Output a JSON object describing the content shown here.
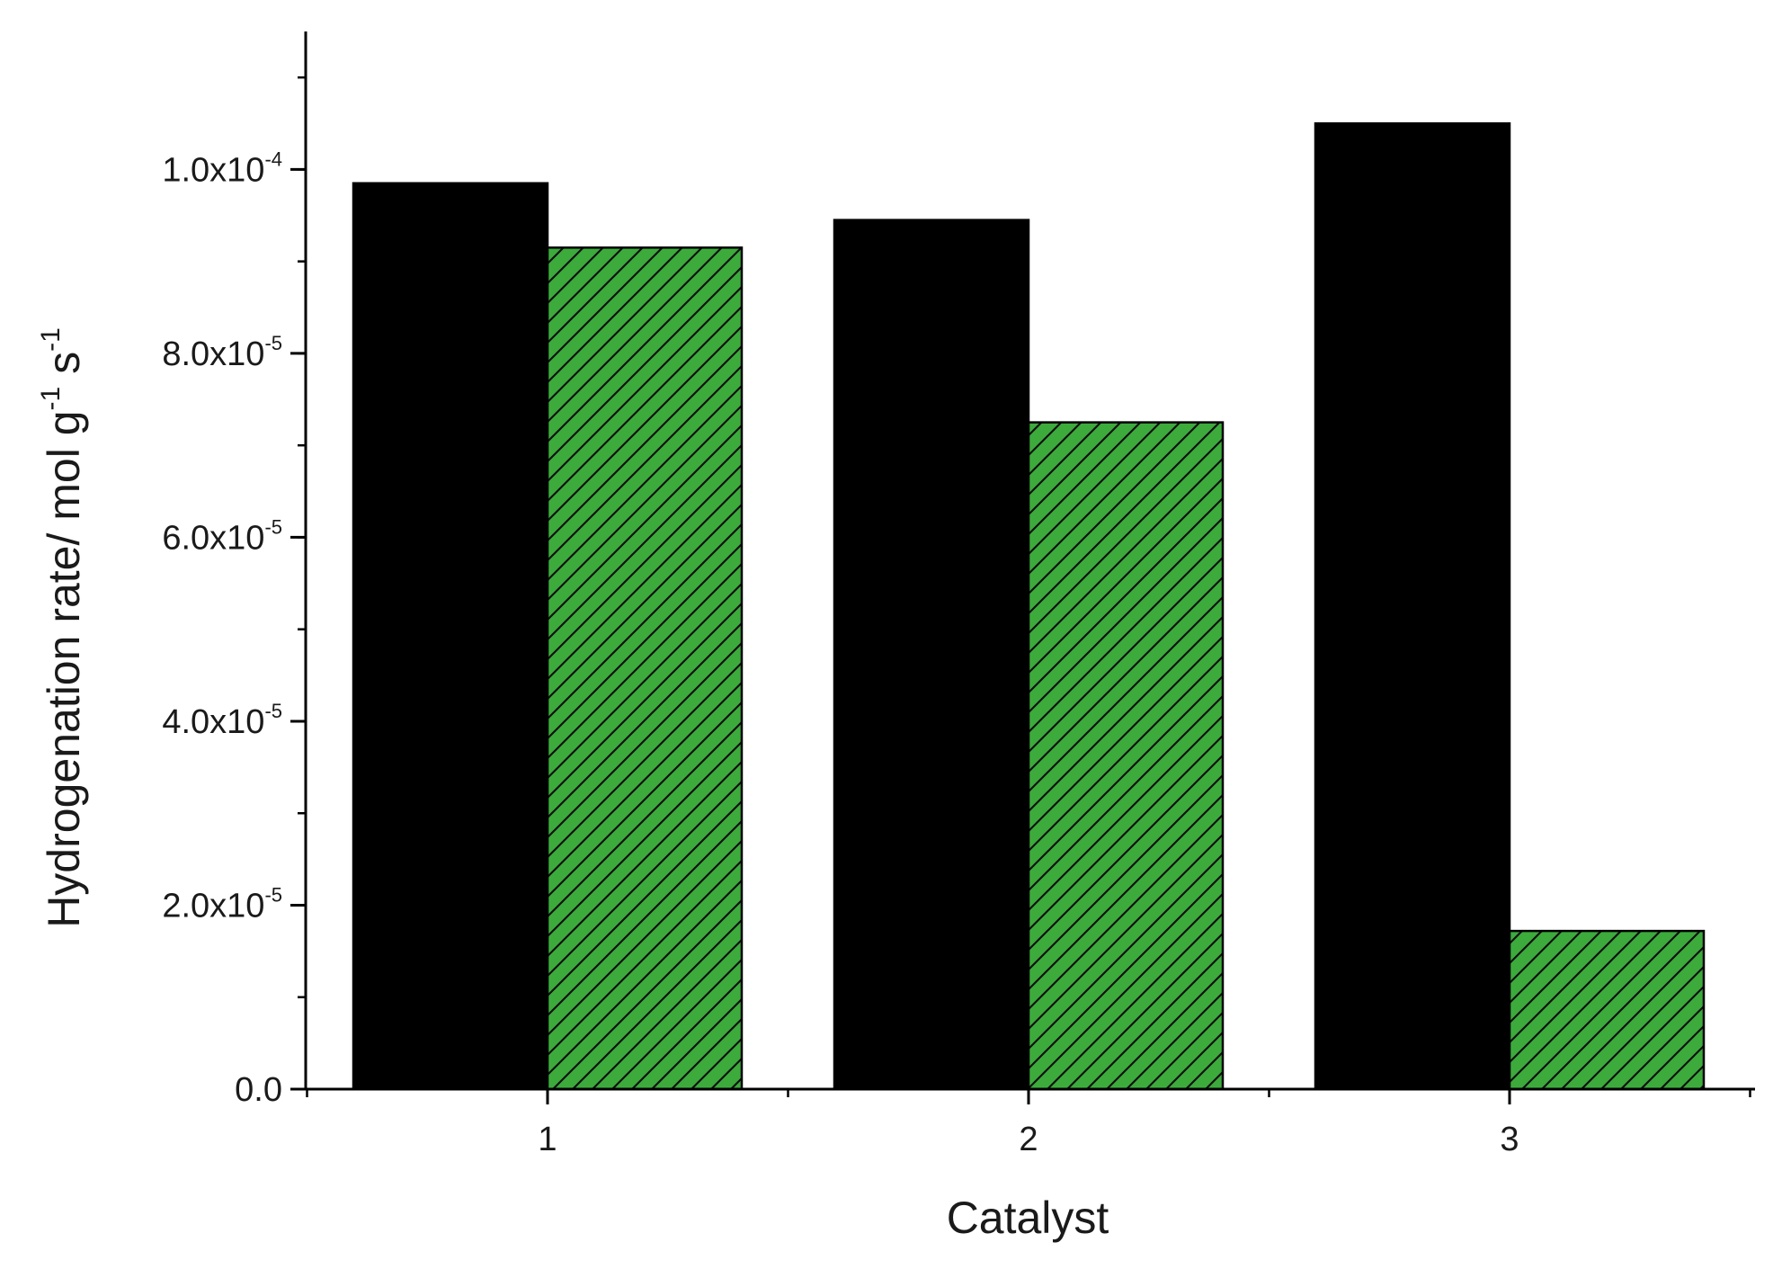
{
  "chart_data": {
    "type": "bar",
    "title": "",
    "xlabel": "Catalyst",
    "ylabel": {
      "main": "Hydrogenation rate/ mol g",
      "exp1": "-1",
      "mid": " s",
      "exp2": "-1"
    },
    "categories": [
      "1",
      "2",
      "3"
    ],
    "series": [
      {
        "values": [
          9.85e-05,
          9.45e-05,
          0.000105
        ],
        "color": "#000000",
        "pattern": "solid"
      },
      {
        "values": [
          9.15e-05,
          7.25e-05,
          1.72e-05
        ],
        "color": "#3cab3c",
        "pattern": "diagonal-hatch"
      }
    ],
    "ylim": [
      0,
      0.000115
    ],
    "yticks": [
      {
        "value": 0,
        "mantissa": "0.0",
        "exponent": ""
      },
      {
        "value": 2e-05,
        "mantissa": "2.0x10",
        "exponent": "-5"
      },
      {
        "value": 4e-05,
        "mantissa": "4.0x10",
        "exponent": "-5"
      },
      {
        "value": 6e-05,
        "mantissa": "6.0x10",
        "exponent": "-5"
      },
      {
        "value": 8e-05,
        "mantissa": "8.0x10",
        "exponent": "-5"
      },
      {
        "value": 0.0001,
        "mantissa": "1.0x10",
        "exponent": "-4"
      }
    ],
    "y_minor_step": 1e-05,
    "grid": false,
    "legend": "none"
  }
}
